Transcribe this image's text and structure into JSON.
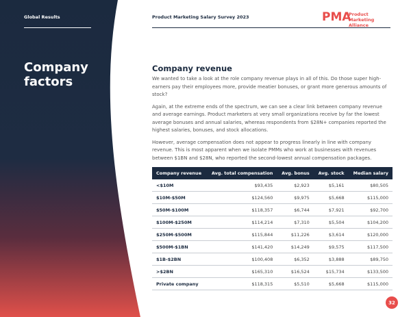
{
  "header": {
    "section": "Global Results",
    "survey": "Product Marketing Salary Survey 2023",
    "logo_mark": "PMA",
    "logo_text": "Product Marketing Alliance"
  },
  "sidebar": {
    "title": "Company factors"
  },
  "content": {
    "heading": "Company revenue",
    "paragraphs": [
      "We wanted to take a look at the role company revenue plays in all of this. Do those super high-earners pay their employees more, provide meatier bonuses, or grant more generous amounts of stock?",
      "Again, at the extreme ends of the spectrum, we can see a clear link between company revenue and average earnings. Product marketers at very small organizations receive by far the lowest average bonuses and annual salaries, whereas respondents from $28N+ companies reported the highest salaries, bonuses, and stock allocations.",
      "However, average compensation does not appear to progress linearly in line with company revenue. This is most apparent when we isolate PMMs who work at businesses with revenues between $1BN and $28N, who reported the second-lowest annual compensation packages."
    ]
  },
  "table": {
    "columns": [
      "Company revenue",
      "Avg. total compensation",
      "Avg. bonus",
      "Avg. stock",
      "Median salary"
    ],
    "rows": [
      [
        "<$10M",
        "$93,435",
        "$2,923",
        "$5,161",
        "$80,505"
      ],
      [
        "$10M-$50M",
        "$124,560",
        "$9,975",
        "$5,668",
        "$115,000"
      ],
      [
        "$50M-$100M",
        "$118,357",
        "$6,744",
        "$7,921",
        "$92,700"
      ],
      [
        "$100M-$250M",
        "$114,214",
        "$7,310",
        "$5,504",
        "$104,200"
      ],
      [
        "$250M-$500M",
        "$115,844",
        "$11,226",
        "$3,614",
        "$120,000"
      ],
      [
        "$500M-$1BN",
        "$141,420",
        "$14,249",
        "$9,575",
        "$117,500"
      ],
      [
        "$1B-$2BN",
        "$100,408",
        "$6,352",
        "$3,888",
        "$89,750"
      ],
      [
        ">$2BN",
        "$165,310",
        "$16,524",
        "$15,734",
        "$133,500"
      ],
      [
        "Private company",
        "$118,315",
        "$5,510",
        "$5,668",
        "$115,000"
      ]
    ]
  },
  "page_number": "32"
}
